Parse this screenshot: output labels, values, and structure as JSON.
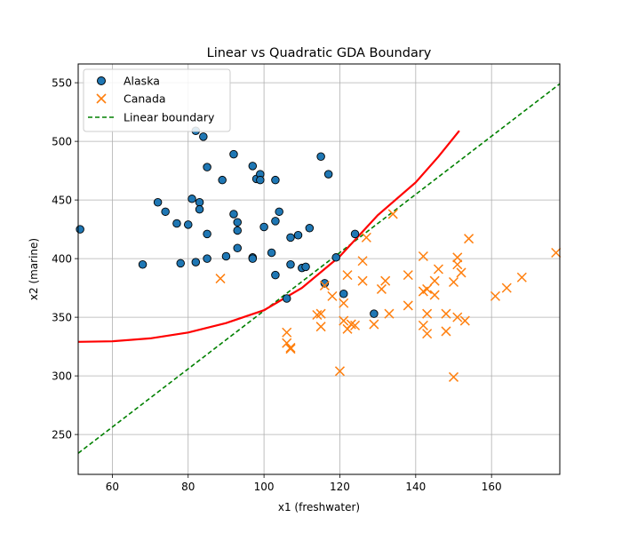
{
  "chart_data": {
    "type": "scatter",
    "title": "Linear vs Quadratic GDA Boundary",
    "xlabel": "x1 (freshwater)",
    "ylabel": "x2 (marine)",
    "xlim": [
      51,
      178
    ],
    "ylim": [
      216,
      566
    ],
    "xticks": [
      60,
      80,
      100,
      120,
      140,
      160
    ],
    "yticks": [
      250,
      300,
      350,
      400,
      450,
      500,
      550
    ],
    "grid": true,
    "legend_position": "top-left",
    "series": [
      {
        "name": "Alaska",
        "marker": "circle",
        "color": "#1f77b4",
        "points": [
          [
            51.5,
            425
          ],
          [
            68,
            395
          ],
          [
            72,
            448
          ],
          [
            74,
            440
          ],
          [
            77,
            430
          ],
          [
            78,
            396
          ],
          [
            80,
            429
          ],
          [
            81,
            451
          ],
          [
            82,
            509
          ],
          [
            82,
            397
          ],
          [
            83,
            448
          ],
          [
            83,
            442
          ],
          [
            84,
            504
          ],
          [
            85,
            478
          ],
          [
            85,
            421
          ],
          [
            85,
            400
          ],
          [
            89,
            467
          ],
          [
            90,
            402
          ],
          [
            92,
            489
          ],
          [
            92,
            438
          ],
          [
            93,
            431
          ],
          [
            93,
            424
          ],
          [
            93,
            409
          ],
          [
            97,
            479
          ],
          [
            97,
            401
          ],
          [
            97,
            400
          ],
          [
            98,
            468
          ],
          [
            99,
            472
          ],
          [
            99,
            467
          ],
          [
            100,
            427
          ],
          [
            102,
            405
          ],
          [
            103,
            467
          ],
          [
            103,
            432
          ],
          [
            103,
            386
          ],
          [
            104,
            440
          ],
          [
            106,
            366
          ],
          [
            107,
            418
          ],
          [
            107,
            395
          ],
          [
            109,
            420
          ],
          [
            110,
            392
          ],
          [
            111,
            393
          ],
          [
            112,
            426
          ],
          [
            115,
            487
          ],
          [
            116,
            379
          ],
          [
            117,
            472
          ],
          [
            119,
            401
          ],
          [
            121,
            370
          ],
          [
            124,
            421
          ],
          [
            129,
            353
          ]
        ]
      },
      {
        "name": "Canada",
        "marker": "x",
        "color": "#ff7f0e",
        "points": [
          [
            88.5,
            383
          ],
          [
            106,
            337
          ],
          [
            106,
            328
          ],
          [
            107,
            324
          ],
          [
            107,
            323
          ],
          [
            114,
            352
          ],
          [
            115,
            353
          ],
          [
            115,
            342
          ],
          [
            116,
            377
          ],
          [
            118,
            368
          ],
          [
            120,
            304
          ],
          [
            121,
            362
          ],
          [
            121,
            347
          ],
          [
            122,
            386
          ],
          [
            122,
            340
          ],
          [
            123,
            344
          ],
          [
            124,
            343
          ],
          [
            126,
            398
          ],
          [
            126,
            381
          ],
          [
            127,
            418
          ],
          [
            129,
            344
          ],
          [
            131,
            374
          ],
          [
            132,
            381
          ],
          [
            133,
            353
          ],
          [
            134,
            438
          ],
          [
            138,
            386
          ],
          [
            138,
            360
          ],
          [
            142,
            402
          ],
          [
            142,
            372
          ],
          [
            142,
            343
          ],
          [
            143,
            374
          ],
          [
            143,
            353
          ],
          [
            143,
            336
          ],
          [
            145,
            381
          ],
          [
            145,
            369
          ],
          [
            146,
            391
          ],
          [
            148,
            353
          ],
          [
            148,
            338
          ],
          [
            150,
            380
          ],
          [
            150,
            299
          ],
          [
            151,
            401
          ],
          [
            151,
            395
          ],
          [
            151,
            350
          ],
          [
            152,
            388
          ],
          [
            153,
            347
          ],
          [
            154,
            417
          ],
          [
            161,
            368
          ],
          [
            164,
            375
          ],
          [
            168,
            384
          ],
          [
            177,
            405
          ]
        ]
      },
      {
        "name": "Linear boundary",
        "type": "line",
        "style": "dashed",
        "color": "#008000",
        "points": [
          [
            51,
            234
          ],
          [
            178,
            549
          ]
        ]
      },
      {
        "name": "",
        "type": "line",
        "style": "solid",
        "color": "#ff0000",
        "points": [
          [
            51,
            329
          ],
          [
            60,
            329.5
          ],
          [
            70,
            332
          ],
          [
            80,
            337
          ],
          [
            90,
            345
          ],
          [
            100,
            356
          ],
          [
            110,
            375
          ],
          [
            120,
            402
          ],
          [
            130,
            437
          ],
          [
            140,
            465
          ],
          [
            146,
            487
          ],
          [
            151.5,
            509
          ]
        ]
      }
    ]
  }
}
